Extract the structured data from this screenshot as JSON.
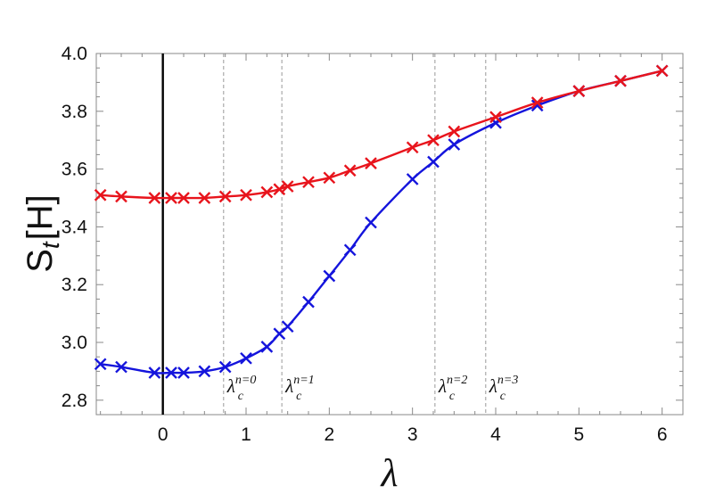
{
  "chart_data": {
    "type": "line",
    "title": "",
    "xlabel": "λ",
    "ylabel": "S_t[H]",
    "ylabel_main": "S",
    "ylabel_sub": "t",
    "ylabel_bracket": "[H]",
    "xlim": [
      -0.8,
      6.25
    ],
    "ylim": [
      2.75,
      4.0
    ],
    "xticks": [
      0,
      1,
      2,
      3,
      4,
      5,
      6
    ],
    "yticks": [
      2.8,
      3.0,
      3.2,
      3.4,
      3.6,
      3.8,
      4.0
    ],
    "ytick_labels": [
      "2.8",
      "3.0",
      "3.2",
      "3.4",
      "3.6",
      "3.8",
      "4.0"
    ],
    "grid": false,
    "legend": "none",
    "vertical_line_x": 0,
    "critical_lines": [
      {
        "x": 0.73,
        "label": "λ",
        "sub": "c",
        "sup": "n=0"
      },
      {
        "x": 1.43,
        "label": "λ",
        "sub": "c",
        "sup": "n=1"
      },
      {
        "x": 3.27,
        "label": "λ",
        "sub": "c",
        "sup": "n=2"
      },
      {
        "x": 3.88,
        "label": "λ",
        "sub": "c",
        "sup": "n=3"
      }
    ],
    "series": [
      {
        "color": "#e8141c",
        "x": [
          -0.75,
          -0.5,
          -0.1,
          0.1,
          0.25,
          0.5,
          0.75,
          1.0,
          1.25,
          1.4,
          1.5,
          1.75,
          2.0,
          2.25,
          2.5,
          3.0,
          3.25,
          3.5,
          4.0,
          4.5,
          5.0,
          5.5,
          6.0
        ],
        "y": [
          3.51,
          3.505,
          3.5,
          3.5,
          3.5,
          3.5,
          3.505,
          3.51,
          3.52,
          3.53,
          3.54,
          3.555,
          3.57,
          3.595,
          3.62,
          3.675,
          3.7,
          3.73,
          3.78,
          3.83,
          3.87,
          3.905,
          3.94
        ]
      },
      {
        "color": "#1414dc",
        "x": [
          -0.75,
          -0.5,
          -0.1,
          0.1,
          0.25,
          0.5,
          0.75,
          1.0,
          1.25,
          1.4,
          1.5,
          1.75,
          2.0,
          2.25,
          2.5,
          3.0,
          3.25,
          3.5,
          4.0,
          4.5,
          5.0,
          5.5,
          6.0
        ],
        "y": [
          2.925,
          2.915,
          2.895,
          2.895,
          2.895,
          2.9,
          2.915,
          2.945,
          2.985,
          3.03,
          3.055,
          3.14,
          3.23,
          3.32,
          3.415,
          3.565,
          3.625,
          3.685,
          3.76,
          3.82,
          3.87,
          3.905,
          3.94
        ]
      }
    ]
  }
}
